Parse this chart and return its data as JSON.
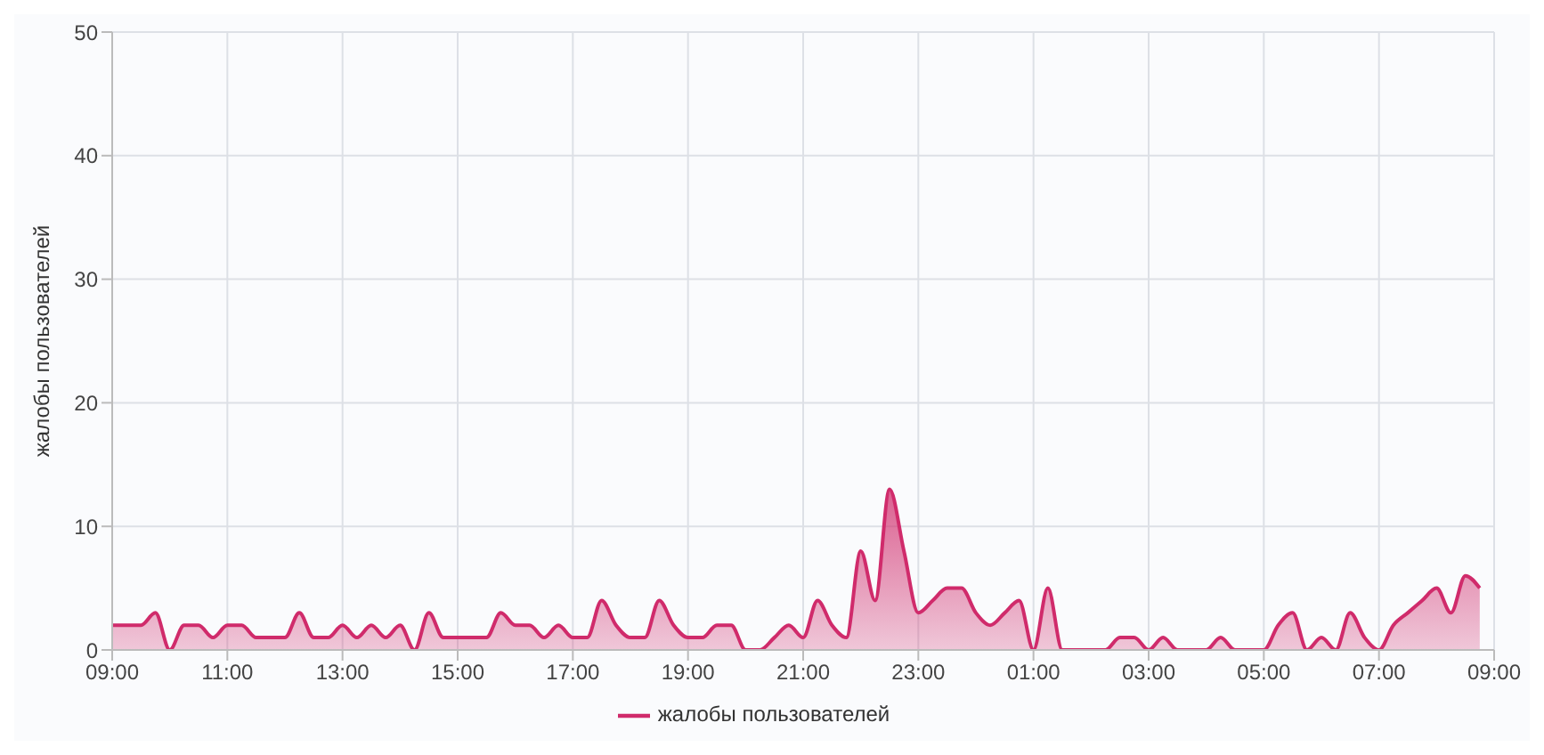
{
  "chart_data": {
    "type": "area",
    "ylabel": "жалобы пользователей",
    "x": [
      "--01-01T09:00",
      "--01-01T09:15",
      "--01-01T09:30",
      "--01-01T09:45",
      "--01-01T10:00",
      "--01-01T10:15",
      "--01-01T10:30",
      "--01-01T10:45",
      "--01-01T11:00",
      "--01-01T11:15",
      "--01-01T11:30",
      "--01-01T11:45",
      "--01-01T12:00",
      "--01-01T12:15",
      "--01-01T12:30",
      "--01-01T12:45",
      "--01-01T13:00",
      "--01-01T13:15",
      "--01-01T13:30",
      "--01-01T13:45",
      "--01-01T14:00",
      "--01-01T14:15",
      "--01-01T14:30",
      "--01-01T14:45",
      "--01-01T15:00",
      "--01-01T15:15",
      "--01-01T15:30",
      "--01-01T15:45",
      "--01-01T16:00",
      "--01-01T16:15",
      "--01-01T16:30",
      "--01-01T16:45",
      "--01-01T17:00",
      "--01-01T17:15",
      "--01-01T17:30",
      "--01-01T17:45",
      "--01-01T18:00",
      "--01-01T18:15",
      "--01-01T18:30",
      "--01-01T18:45",
      "--01-01T19:00",
      "--01-01T19:15",
      "--01-01T19:30",
      "--01-01T19:45",
      "--01-01T20:00",
      "--01-01T20:15",
      "--01-01T20:30",
      "--01-01T20:45",
      "--01-01T21:00",
      "--01-01T21:15",
      "--01-01T21:30",
      "--01-01T21:45",
      "--01-01T22:00",
      "--01-01T22:15",
      "--01-01T22:30",
      "--01-01T22:45",
      "--01-01T23:00",
      "--01-01T23:15",
      "--01-01T23:30",
      "--01-01T23:45",
      "--01-02T00:00",
      "--01-02T00:15",
      "--01-02T00:30",
      "--01-02T00:45",
      "--01-02T01:00",
      "--01-02T01:15",
      "--01-02T01:30",
      "--01-02T01:45",
      "--01-02T02:00",
      "--01-02T02:15",
      "--01-02T02:30",
      "--01-02T02:45",
      "--01-02T03:00",
      "--01-02T03:15",
      "--01-02T03:30",
      "--01-02T03:45",
      "--01-02T04:00",
      "--01-02T04:15",
      "--01-02T04:30",
      "--01-02T04:45",
      "--01-02T05:00",
      "--01-02T05:15",
      "--01-02T05:30",
      "--01-02T05:45",
      "--01-02T06:00",
      "--01-02T06:15",
      "--01-02T06:30",
      "--01-02T06:45",
      "--01-02T07:00",
      "--01-02T07:15",
      "--01-02T07:30",
      "--01-02T07:45",
      "--01-02T08:00",
      "--01-02T08:15",
      "--01-02T08:30",
      "--01-02T08:45"
    ],
    "series": [
      {
        "name": "жалобы пользователей",
        "color": "#d02b6b",
        "values": [
          2,
          2,
          2,
          3,
          0,
          2,
          2,
          1,
          2,
          2,
          1,
          1,
          1,
          3,
          1,
          1,
          2,
          1,
          2,
          1,
          2,
          0,
          3,
          1,
          1,
          1,
          1,
          3,
          2,
          2,
          1,
          2,
          1,
          1,
          4,
          2,
          1,
          1,
          4,
          2,
          1,
          1,
          2,
          2,
          0,
          0,
          1,
          2,
          1,
          4,
          2,
          1,
          8,
          4,
          13,
          8,
          3,
          4,
          5,
          5,
          3,
          2,
          3,
          4,
          0,
          5,
          0,
          0,
          0,
          0,
          1,
          1,
          0,
          1,
          0,
          0,
          0,
          1,
          0,
          0,
          0,
          2,
          3,
          0,
          1,
          0,
          3,
          1,
          0,
          2,
          3,
          4,
          5,
          3,
          6,
          5
        ]
      }
    ],
    "xlim": [
      "--01-01T09:00",
      "--01-02T09:00"
    ],
    "xticks": [
      {
        "value": "--01-01T09:00",
        "label": "09:00"
      },
      {
        "value": "--01-01T11:00",
        "label": "11:00"
      },
      {
        "value": "--01-01T13:00",
        "label": "13:00"
      },
      {
        "value": "--01-01T15:00",
        "label": "15:00"
      },
      {
        "value": "--01-01T17:00",
        "label": "17:00"
      },
      {
        "value": "--01-01T19:00",
        "label": "19:00"
      },
      {
        "value": "--01-01T21:00",
        "label": "21:00"
      },
      {
        "value": "--01-01T23:00",
        "label": "23:00"
      },
      {
        "value": "--01-02T01:00",
        "label": "01:00"
      },
      {
        "value": "--01-02T03:00",
        "label": "03:00"
      },
      {
        "value": "--01-02T05:00",
        "label": "05:00"
      },
      {
        "value": "--01-02T07:00",
        "label": "07:00"
      },
      {
        "value": "--01-02T09:00",
        "label": "09:00"
      }
    ],
    "ylim": [
      0,
      50
    ],
    "yticks": [
      0,
      10,
      20,
      30,
      40,
      50
    ],
    "grid": true,
    "legend": "bottom",
    "marker": "none",
    "line_style": "solid"
  }
}
